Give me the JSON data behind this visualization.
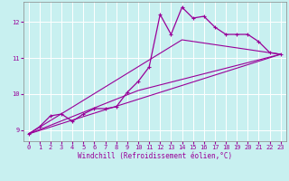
{
  "title": "",
  "xlabel": "Windchill (Refroidissement éolien,°C)",
  "ylabel": "",
  "bg_color": "#c8f0f0",
  "line_color": "#990099",
  "xlim": [
    -0.5,
    23.5
  ],
  "ylim": [
    8.7,
    12.55
  ],
  "xticks": [
    0,
    1,
    2,
    3,
    4,
    5,
    6,
    7,
    8,
    9,
    10,
    11,
    12,
    13,
    14,
    15,
    16,
    17,
    18,
    19,
    20,
    21,
    22,
    23
  ],
  "yticks": [
    9,
    10,
    11,
    12
  ],
  "main_x": [
    0,
    1,
    2,
    3,
    4,
    5,
    6,
    7,
    8,
    9,
    10,
    11,
    12,
    13,
    14,
    15,
    16,
    17,
    18,
    19,
    20,
    21,
    22,
    23
  ],
  "main_y": [
    8.9,
    9.1,
    9.4,
    9.45,
    9.25,
    9.45,
    9.6,
    9.6,
    9.65,
    10.05,
    10.35,
    10.75,
    12.2,
    11.65,
    12.4,
    12.1,
    12.15,
    11.85,
    11.65,
    11.65,
    11.65,
    11.45,
    11.15,
    11.1
  ],
  "trend1_x": [
    0,
    23
  ],
  "trend1_y": [
    8.9,
    11.1
  ],
  "trend2_x": [
    0,
    10,
    23
  ],
  "trend2_y": [
    8.9,
    10.1,
    11.1
  ],
  "trend3_x": [
    0,
    14,
    23
  ],
  "trend3_y": [
    8.9,
    11.5,
    11.1
  ],
  "tick_fontsize": 5.0,
  "xlabel_fontsize": 5.5
}
